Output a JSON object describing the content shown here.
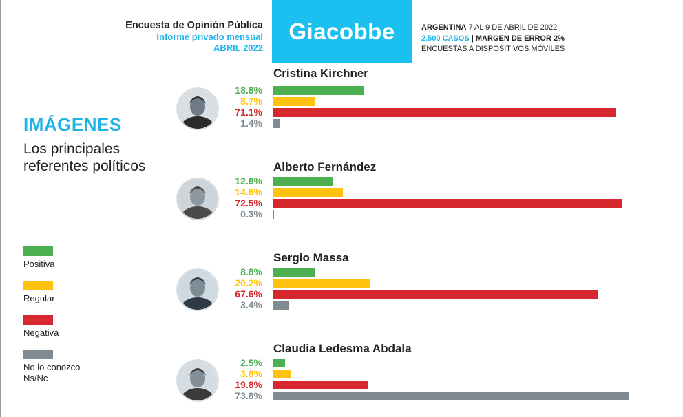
{
  "header": {
    "title": "Encuesta de Opinión Pública",
    "subtitle": "Informe privado mensual",
    "month": "ABRIL 2022",
    "brand": "Giacobbe",
    "country": "ARGENTINA",
    "dates": "7 AL 9 DE ABRIL DE 2022",
    "cases": "2.500 CASOS",
    "separator": "|",
    "margin": "MARGEN DE ERROR 2%",
    "method": "ENCUESTAS A DISPOSITIVOS MÓVILES"
  },
  "section": {
    "title": "IMÁGENES",
    "subtitle": "Los principales referentes políticos"
  },
  "colors": {
    "Positiva": "#4caf50",
    "Regular": "#ffc20e",
    "Negativa": "#d7272e",
    "No lo conozco Ns/Nc": "#7f8a91",
    "brand": "#1cc0f0"
  },
  "legend": [
    {
      "label": "Positiva",
      "color": "#4caf50"
    },
    {
      "label": "Regular",
      "color": "#ffc20e"
    },
    {
      "label": "Negativa",
      "color": "#d7272e"
    },
    {
      "label": "No lo conozco Ns/Nc",
      "color": "#7f8a91"
    }
  ],
  "chart_data": {
    "type": "bar",
    "orientation": "horizontal",
    "categories": [
      "Cristina Kirchner",
      "Alberto Fernández",
      "Sergio Massa",
      "Claudia Ledesma Abdala"
    ],
    "series": [
      {
        "name": "Positiva",
        "values": [
          18.8,
          12.6,
          8.8,
          2.5
        ],
        "labels": [
          "18.8%",
          "12.6%",
          "8.8%",
          "2.5%"
        ]
      },
      {
        "name": "Regular",
        "values": [
          8.7,
          14.6,
          20.2,
          3.8
        ],
        "labels": [
          "8.7%",
          "14.6%",
          "20.2%",
          "3.8%"
        ]
      },
      {
        "name": "Negativa",
        "values": [
          71.1,
          72.5,
          67.6,
          19.8
        ],
        "labels": [
          "71.1%",
          "72.5%",
          "67.6%",
          "19.8%"
        ]
      },
      {
        "name": "No lo conozco Ns/Nc",
        "values": [
          1.4,
          0.3,
          3.4,
          73.8
        ],
        "labels": [
          "1.4%",
          "0.3%",
          "3.4%",
          "73.8%"
        ]
      }
    ],
    "xlim": [
      0,
      100
    ],
    "legend_position": "left"
  }
}
